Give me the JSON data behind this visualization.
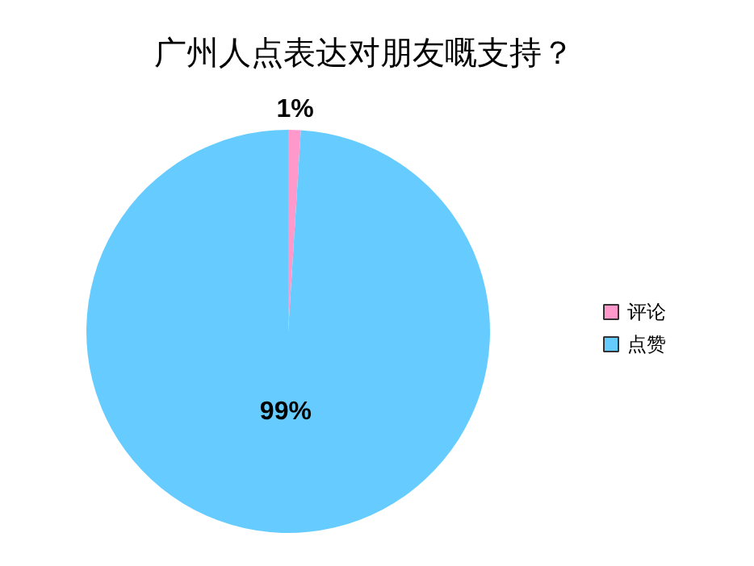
{
  "chart_data": {
    "type": "pie",
    "title": "广州人点表达对朋友嘅支持？",
    "categories": [
      "评论",
      "点赞"
    ],
    "values": [
      1,
      99
    ],
    "colors": [
      "#ff99cc",
      "#66ccff"
    ],
    "value_labels": [
      "1%",
      "99%"
    ],
    "legend": "right"
  }
}
